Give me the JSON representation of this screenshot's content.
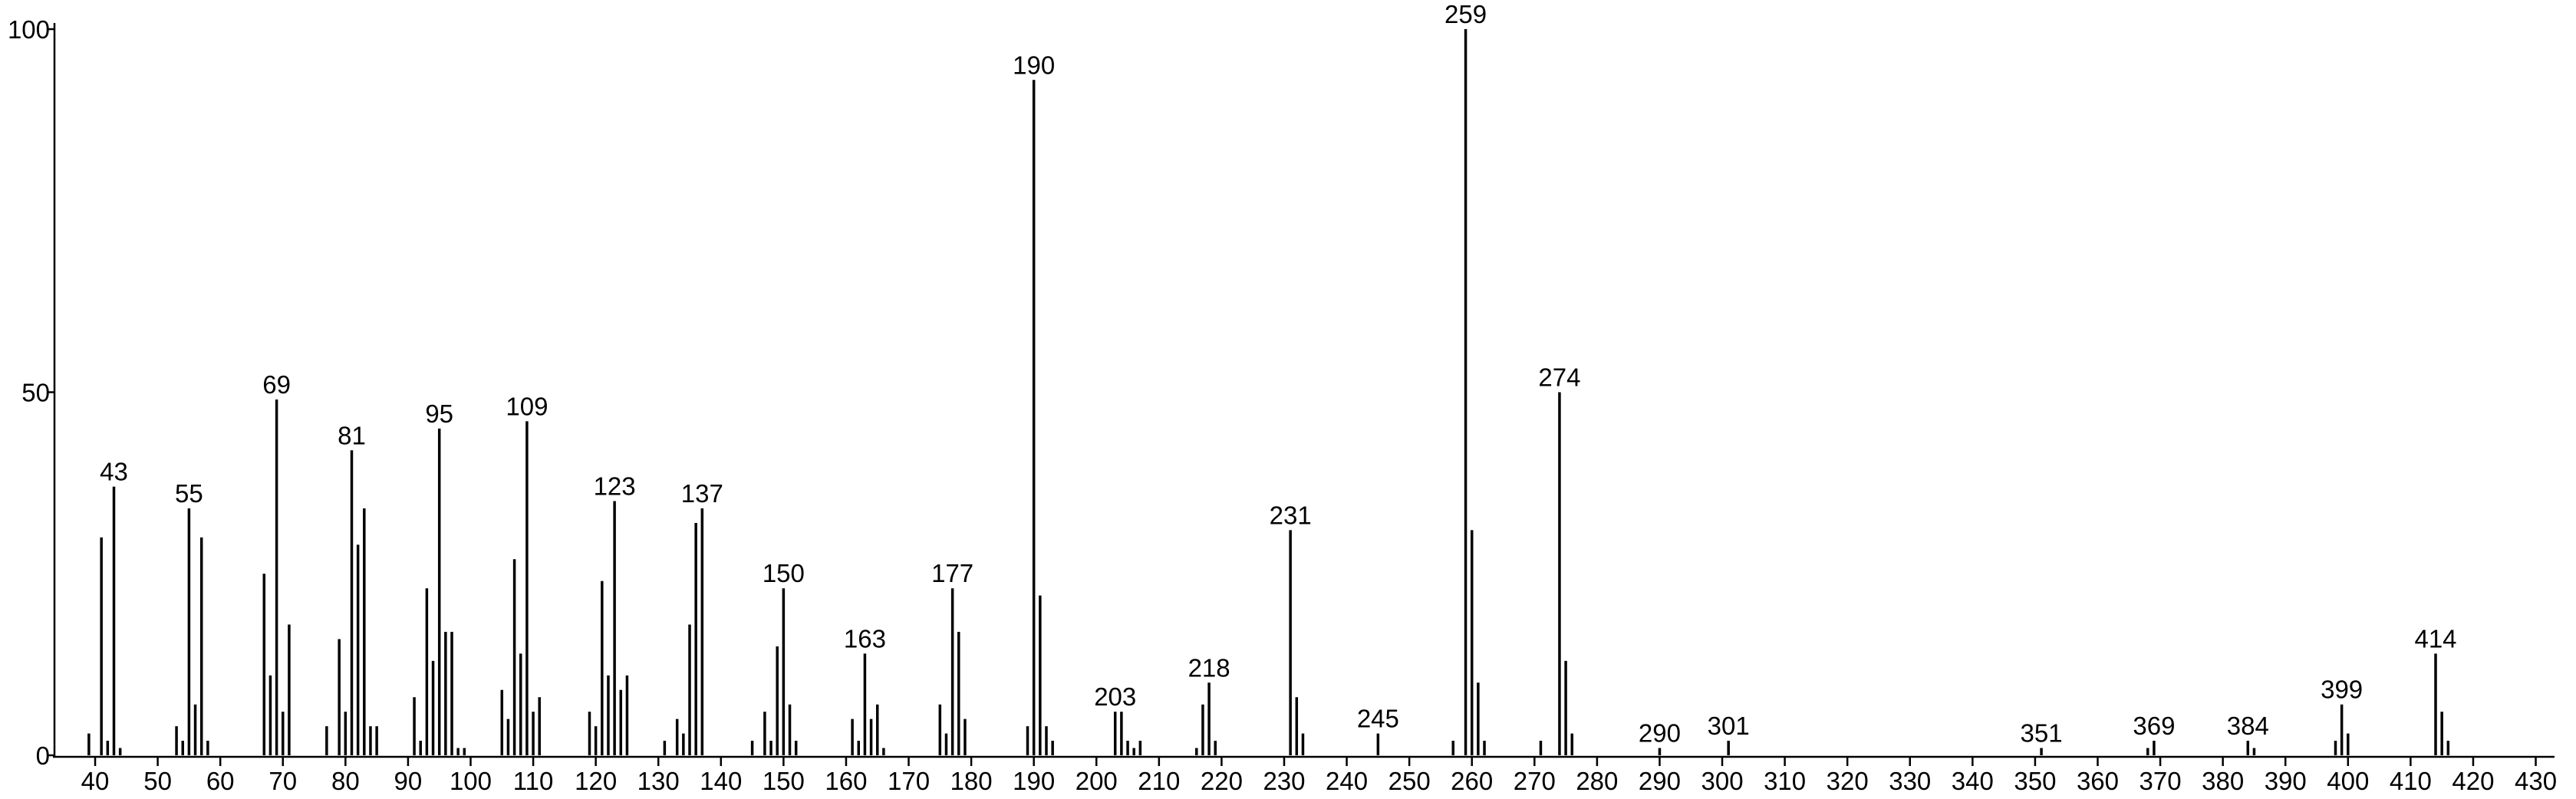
{
  "chart_data": {
    "type": "stick",
    "x": [
      39,
      41,
      42,
      43,
      44,
      53,
      54,
      55,
      56,
      57,
      58,
      67,
      68,
      69,
      70,
      71,
      77,
      79,
      80,
      81,
      82,
      83,
      84,
      85,
      91,
      92,
      93,
      94,
      95,
      96,
      97,
      98,
      99,
      105,
      106,
      107,
      108,
      109,
      110,
      111,
      119,
      120,
      121,
      122,
      123,
      124,
      125,
      131,
      133,
      134,
      135,
      136,
      137,
      145,
      147,
      148,
      149,
      150,
      151,
      152,
      161,
      162,
      163,
      164,
      165,
      166,
      175,
      176,
      177,
      178,
      179,
      189,
      190,
      191,
      192,
      193,
      203,
      204,
      205,
      206,
      207,
      216,
      217,
      218,
      219,
      231,
      232,
      233,
      245,
      257,
      259,
      260,
      261,
      262,
      271,
      274,
      275,
      276,
      290,
      301,
      351,
      368,
      369,
      384,
      385,
      398,
      399,
      400,
      414,
      415,
      416
    ],
    "values": [
      3,
      30,
      2,
      37,
      1,
      4,
      2,
      34,
      7,
      30,
      2,
      25,
      11,
      49,
      6,
      18,
      4,
      16,
      6,
      42,
      29,
      34,
      4,
      4,
      8,
      2,
      23,
      13,
      45,
      17,
      17,
      1,
      1,
      9,
      5,
      27,
      14,
      46,
      6,
      8,
      6,
      4,
      24,
      11,
      35,
      9,
      11,
      2,
      5,
      3,
      18,
      32,
      34,
      2,
      6,
      2,
      15,
      23,
      7,
      2,
      5,
      2,
      14,
      5,
      7,
      1,
      7,
      3,
      23,
      17,
      5,
      4,
      93,
      22,
      4,
      2,
      6,
      6,
      2,
      1,
      2,
      1,
      7,
      10,
      2,
      31,
      8,
      3,
      3,
      2,
      100,
      31,
      10,
      2,
      2,
      50,
      13,
      3,
      1,
      2,
      1,
      1,
      2,
      2,
      1,
      2,
      7,
      3,
      14,
      6,
      2
    ],
    "labeled_peaks": [
      43,
      55,
      69,
      81,
      95,
      109,
      123,
      137,
      150,
      163,
      177,
      190,
      203,
      218,
      231,
      245,
      259,
      274,
      290,
      301,
      351,
      369,
      384,
      399,
      414
    ],
    "color": "#000000",
    "xlim": [
      33.5,
      433
    ],
    "xticks": [
      40,
      50,
      60,
      70,
      80,
      90,
      100,
      110,
      120,
      130,
      140,
      150,
      160,
      170,
      180,
      190,
      200,
      210,
      220,
      230,
      240,
      250,
      260,
      270,
      280,
      290,
      300,
      310,
      320,
      330,
      340,
      350,
      360,
      370,
      380,
      390,
      400,
      410,
      420,
      430
    ],
    "ylim": [
      0,
      100
    ],
    "yticks": [
      0,
      50,
      100
    ],
    "grid": false
  }
}
